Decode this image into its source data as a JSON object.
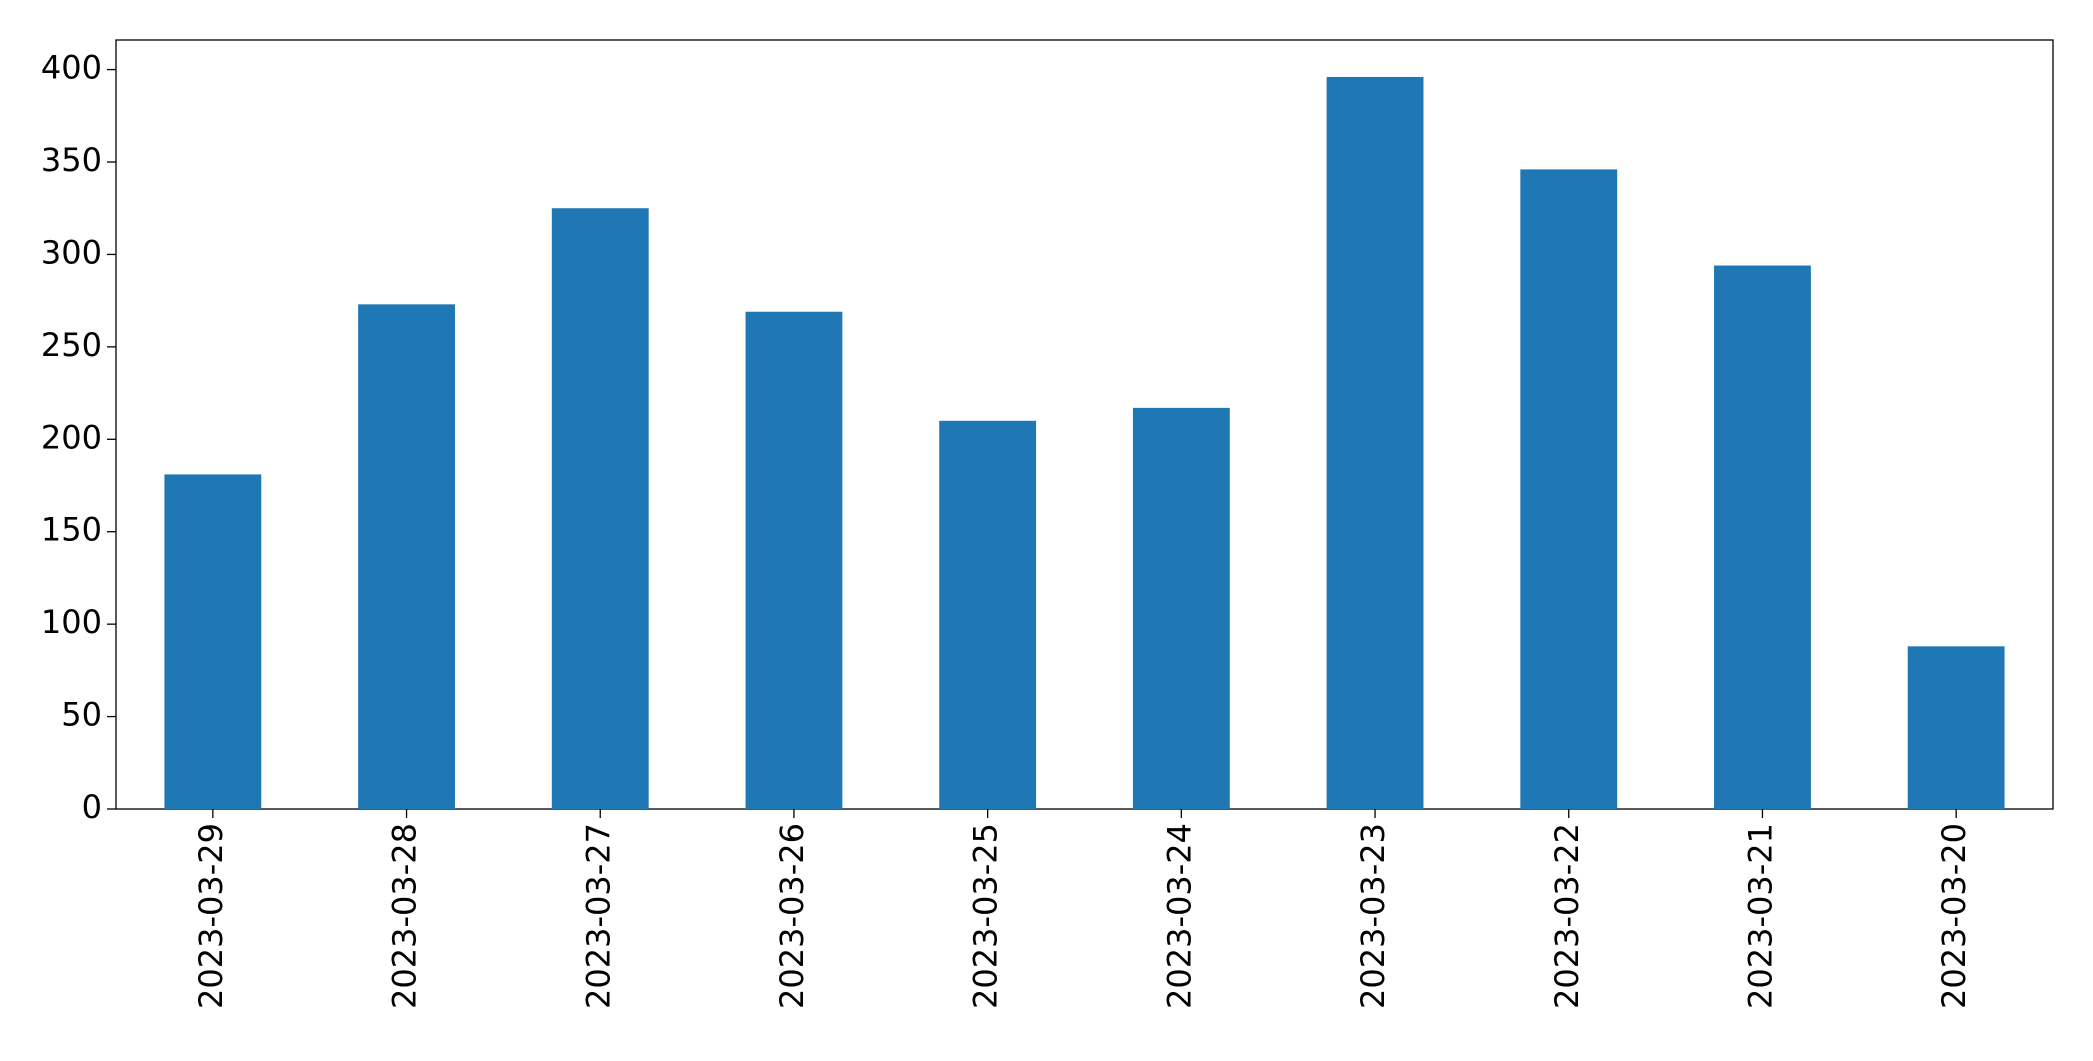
{
  "chart_data": {
    "type": "bar",
    "categories": [
      "2023-03-29",
      "2023-03-28",
      "2023-03-27",
      "2023-03-26",
      "2023-03-25",
      "2023-03-24",
      "2023-03-23",
      "2023-03-22",
      "2023-03-21",
      "2023-03-20"
    ],
    "values": [
      181,
      273,
      325,
      269,
      210,
      217,
      396,
      346,
      294,
      88
    ],
    "color": "#1f77b4",
    "ylim": [
      0,
      416
    ],
    "yticks": [
      0,
      50,
      100,
      150,
      200,
      250,
      300,
      350,
      400
    ],
    "grid": false
  }
}
